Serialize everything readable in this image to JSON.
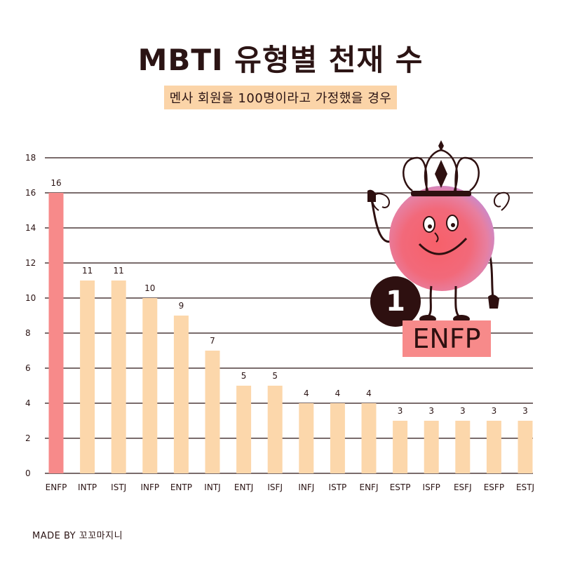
{
  "header": {
    "title": "MBTI 유형별 천재 수",
    "subtitle": "멘사 회원을 100명이라고 가정했을 경우"
  },
  "chart_data": {
    "type": "bar",
    "categories": [
      "ENFP",
      "INTP",
      "ISTJ",
      "INFP",
      "ENTP",
      "INTJ",
      "ENTJ",
      "ISFJ",
      "INFJ",
      "ISTP",
      "ENFJ",
      "ESTP",
      "ISFP",
      "ESFJ",
      "ESFP",
      "ESTJ"
    ],
    "values": [
      16,
      11,
      11,
      10,
      9,
      7,
      5,
      5,
      4,
      4,
      4,
      3,
      3,
      3,
      3,
      3
    ],
    "ylim": [
      0,
      18
    ],
    "yticks": [
      0,
      2,
      4,
      6,
      8,
      10,
      12,
      14,
      16,
      18
    ],
    "grid": true,
    "highlight_index": 0,
    "colors": {
      "highlight": "#f78a8a",
      "bar": "#fcd7ab",
      "grid": "#2b1414"
    }
  },
  "callout": {
    "rank": "1",
    "label": "ENFP"
  },
  "footer": {
    "credit": "MADE BY 꼬꼬마지니"
  }
}
